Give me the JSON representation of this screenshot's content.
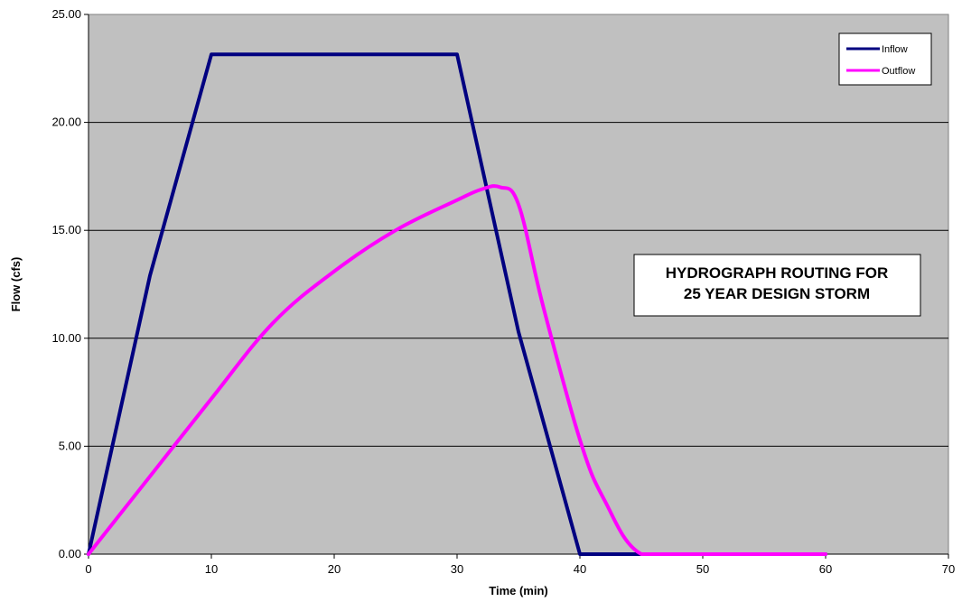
{
  "chart_data": {
    "type": "line",
    "title_lines": [
      "HYDROGRAPH ROUTING FOR",
      "25 YEAR DESIGN STORM"
    ],
    "xlabel": "Time (min)",
    "ylabel": "Flow (cfs)",
    "xlim": [
      0,
      70
    ],
    "ylim": [
      0,
      25
    ],
    "x_ticks": [
      "0",
      "10",
      "20",
      "30",
      "40",
      "50",
      "60",
      "70"
    ],
    "y_ticks": [
      "0.00",
      "5.00",
      "10.00",
      "15.00",
      "20.00",
      "25.00"
    ],
    "grid": "horizontal",
    "legend_position": "top-right",
    "plot_background": "#c0c0c0",
    "series": [
      {
        "name": "Inflow",
        "color": "#000080",
        "x": [
          0,
          5,
          10,
          30,
          35,
          40,
          45,
          50,
          55,
          60
        ],
        "y": [
          0,
          12.9,
          23.15,
          23.15,
          10.3,
          0,
          0,
          0,
          0,
          0
        ]
      },
      {
        "name": "Outflow",
        "color": "#ff00ff",
        "x": [
          0,
          5,
          10,
          15,
          20,
          25,
          30,
          32,
          33.5,
          35,
          37,
          40,
          42,
          45,
          50,
          55,
          60
        ],
        "y": [
          0,
          3.6,
          7.2,
          10.7,
          13.1,
          15.0,
          16.4,
          16.9,
          17.0,
          16.2,
          11.5,
          5.3,
          2.5,
          0,
          0,
          0,
          0
        ]
      }
    ]
  }
}
